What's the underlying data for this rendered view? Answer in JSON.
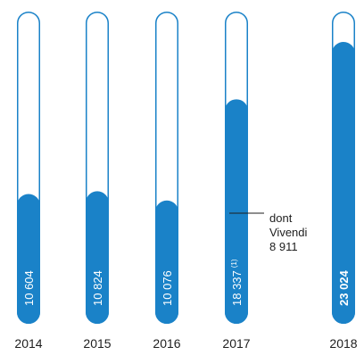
{
  "chart_data": {
    "type": "bar",
    "orientation": "vertical",
    "categories": [
      "2014",
      "2015",
      "2016",
      "2017",
      "2018"
    ],
    "values": [
      10604,
      10824,
      10076,
      18337,
      23024
    ],
    "value_labels": [
      "10 604",
      "10 824",
      "10 076",
      "18 337",
      "23 024"
    ],
    "value_label_notes": [
      "",
      "",
      "",
      "(1)",
      ""
    ],
    "bold_index": 4,
    "ylim": [
      0,
      25500
    ],
    "grid": false,
    "legend": "none",
    "annotation": {
      "category": "2017",
      "lines": [
        "dont",
        "Vivendi",
        "8 911"
      ],
      "value": 8911
    },
    "colors": {
      "fill": "#1a82c8",
      "outline": "#1a82c8",
      "background": "#ffffff",
      "label": "#ffffff",
      "axis_text": "#1e1e1e",
      "annotation_line": "#1e1e1e"
    }
  }
}
